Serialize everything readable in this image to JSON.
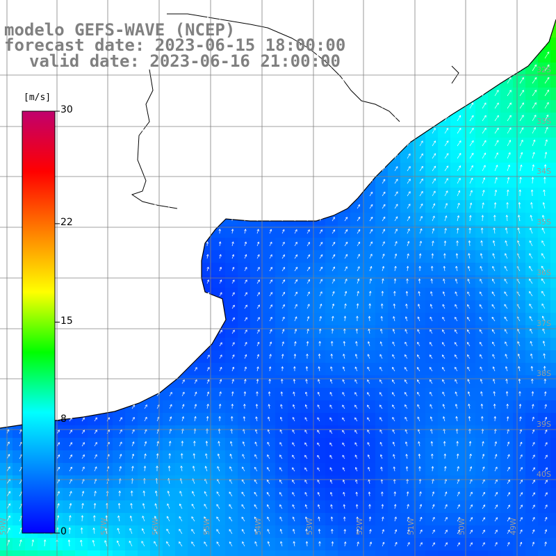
{
  "title": {
    "model": "modelo GEFS-WAVE (NCEP)",
    "forecast": "forecast date: 2023-06-15 18:00:00",
    "valid": "valid date: 2023-06-16 21:00:00"
  },
  "colorbar": {
    "unit": "[m/s]",
    "ticks": [
      {
        "value": 30,
        "label": "30"
      },
      {
        "value": 22,
        "label": "22"
      },
      {
        "value": 15,
        "label": "15"
      },
      {
        "value": 8,
        "label": "8"
      },
      {
        "value": 0,
        "label": "0"
      }
    ],
    "gradient": [
      "#0000ff",
      "#0080ff",
      "#00ffff",
      "#00ff00",
      "#ffff00",
      "#ff8000",
      "#ff0000",
      "#c0006e"
    ]
  },
  "grid": {
    "lat_labels": [
      "32S",
      "33S",
      "34S",
      "35S",
      "36S",
      "37S",
      "38S",
      "39S",
      "40S"
    ],
    "lon_labels": [
      "59W",
      "58W",
      "57W",
      "56W",
      "55W",
      "54W",
      "53W",
      "52W",
      "51W",
      "50W",
      "49W"
    ]
  },
  "land_color": "#ffffff",
  "coast_color": "#000000",
  "grid_color": "#808080"
}
